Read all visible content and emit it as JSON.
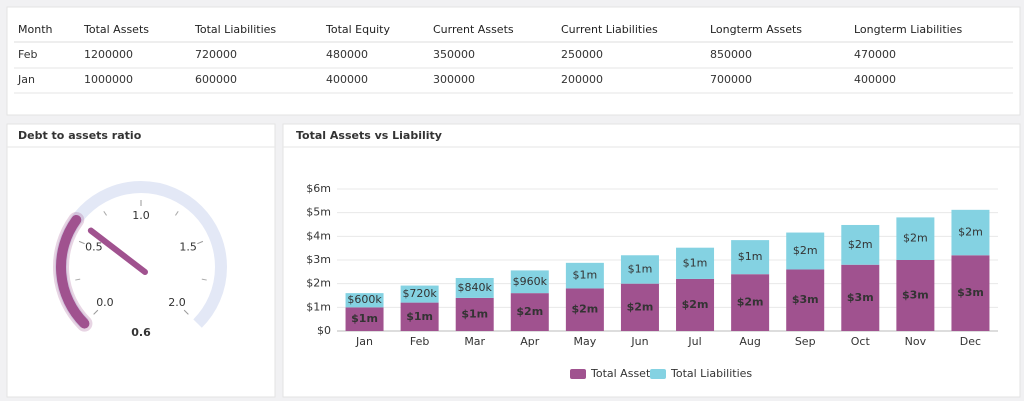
{
  "table": {
    "columns": [
      "Month",
      "Total Assets",
      "Total Liabilities",
      "Total Equity",
      "Current Assets",
      "Current Liabilities",
      "Longterm Assets",
      "Longterm Liabilities"
    ],
    "rows": [
      [
        "Feb",
        "1200000",
        "720000",
        "480000",
        "350000",
        "250000",
        "850000",
        "470000"
      ],
      [
        "Jan",
        "1000000",
        "600000",
        "400000",
        "300000",
        "200000",
        "700000",
        "400000"
      ]
    ]
  },
  "chart_data": [
    {
      "type": "gauge",
      "title": "Debt to assets ratio",
      "value": 0.6,
      "range": [
        0,
        2
      ],
      "color": "#a0528f",
      "ticks": [
        {
          "value": 0,
          "label": "0.0"
        },
        0.5,
        {
          "value": 1,
          "label": "1.0"
        },
        1.5,
        {
          "value": 2,
          "label": "2.0"
        }
      ],
      "minor_ticks": [
        0.25,
        0.75,
        1.25,
        1.75
      ]
    },
    {
      "type": "bar",
      "stacked": true,
      "title": "Total Assets vs Liability",
      "categories": [
        "Jan",
        "Feb",
        "Mar",
        "Apr",
        "May",
        "Jun",
        "Jul",
        "Aug",
        "Sep",
        "Oct",
        "Nov",
        "Dec"
      ],
      "series": [
        {
          "name": "Total Assets",
          "color": "#a0528f",
          "values": [
            1000000,
            1200000,
            1400000,
            1600000,
            1800000,
            2000000,
            2200000,
            2400000,
            2600000,
            2800000,
            3000000,
            3200000
          ],
          "value_labels": [
            "$1m",
            "$1m",
            "$1m",
            "$2m",
            "$2m",
            "$2m",
            "$2m",
            "$2m",
            "$3m",
            "$3m",
            "$3m",
            "$3m"
          ]
        },
        {
          "name": "Total Liabilities",
          "color": "#84d2e2",
          "values": [
            600000,
            720000,
            840000,
            960000,
            1080000,
            1200000,
            1320000,
            1440000,
            1560000,
            1680000,
            1800000,
            1920000
          ],
          "value_labels": [
            "$600k",
            "$720k",
            "$840k",
            "$960k",
            "$1m",
            "$1m",
            "$1m",
            "$1m",
            "$2m",
            "$2m",
            "$2m",
            "$2m"
          ]
        }
      ],
      "ylim": [
        0,
        6000000
      ],
      "yticks": [
        {
          "value": 0,
          "label": "$0"
        },
        {
          "value": 1000000,
          "label": "$1m"
        },
        {
          "value": 2000000,
          "label": "$2m"
        },
        {
          "value": 3000000,
          "label": "$3m"
        },
        {
          "value": 4000000,
          "label": "$4m"
        },
        {
          "value": 5000000,
          "label": "$5m"
        },
        {
          "value": 6000000,
          "label": "$6m"
        }
      ],
      "grid": true,
      "legend": "bottom"
    }
  ]
}
